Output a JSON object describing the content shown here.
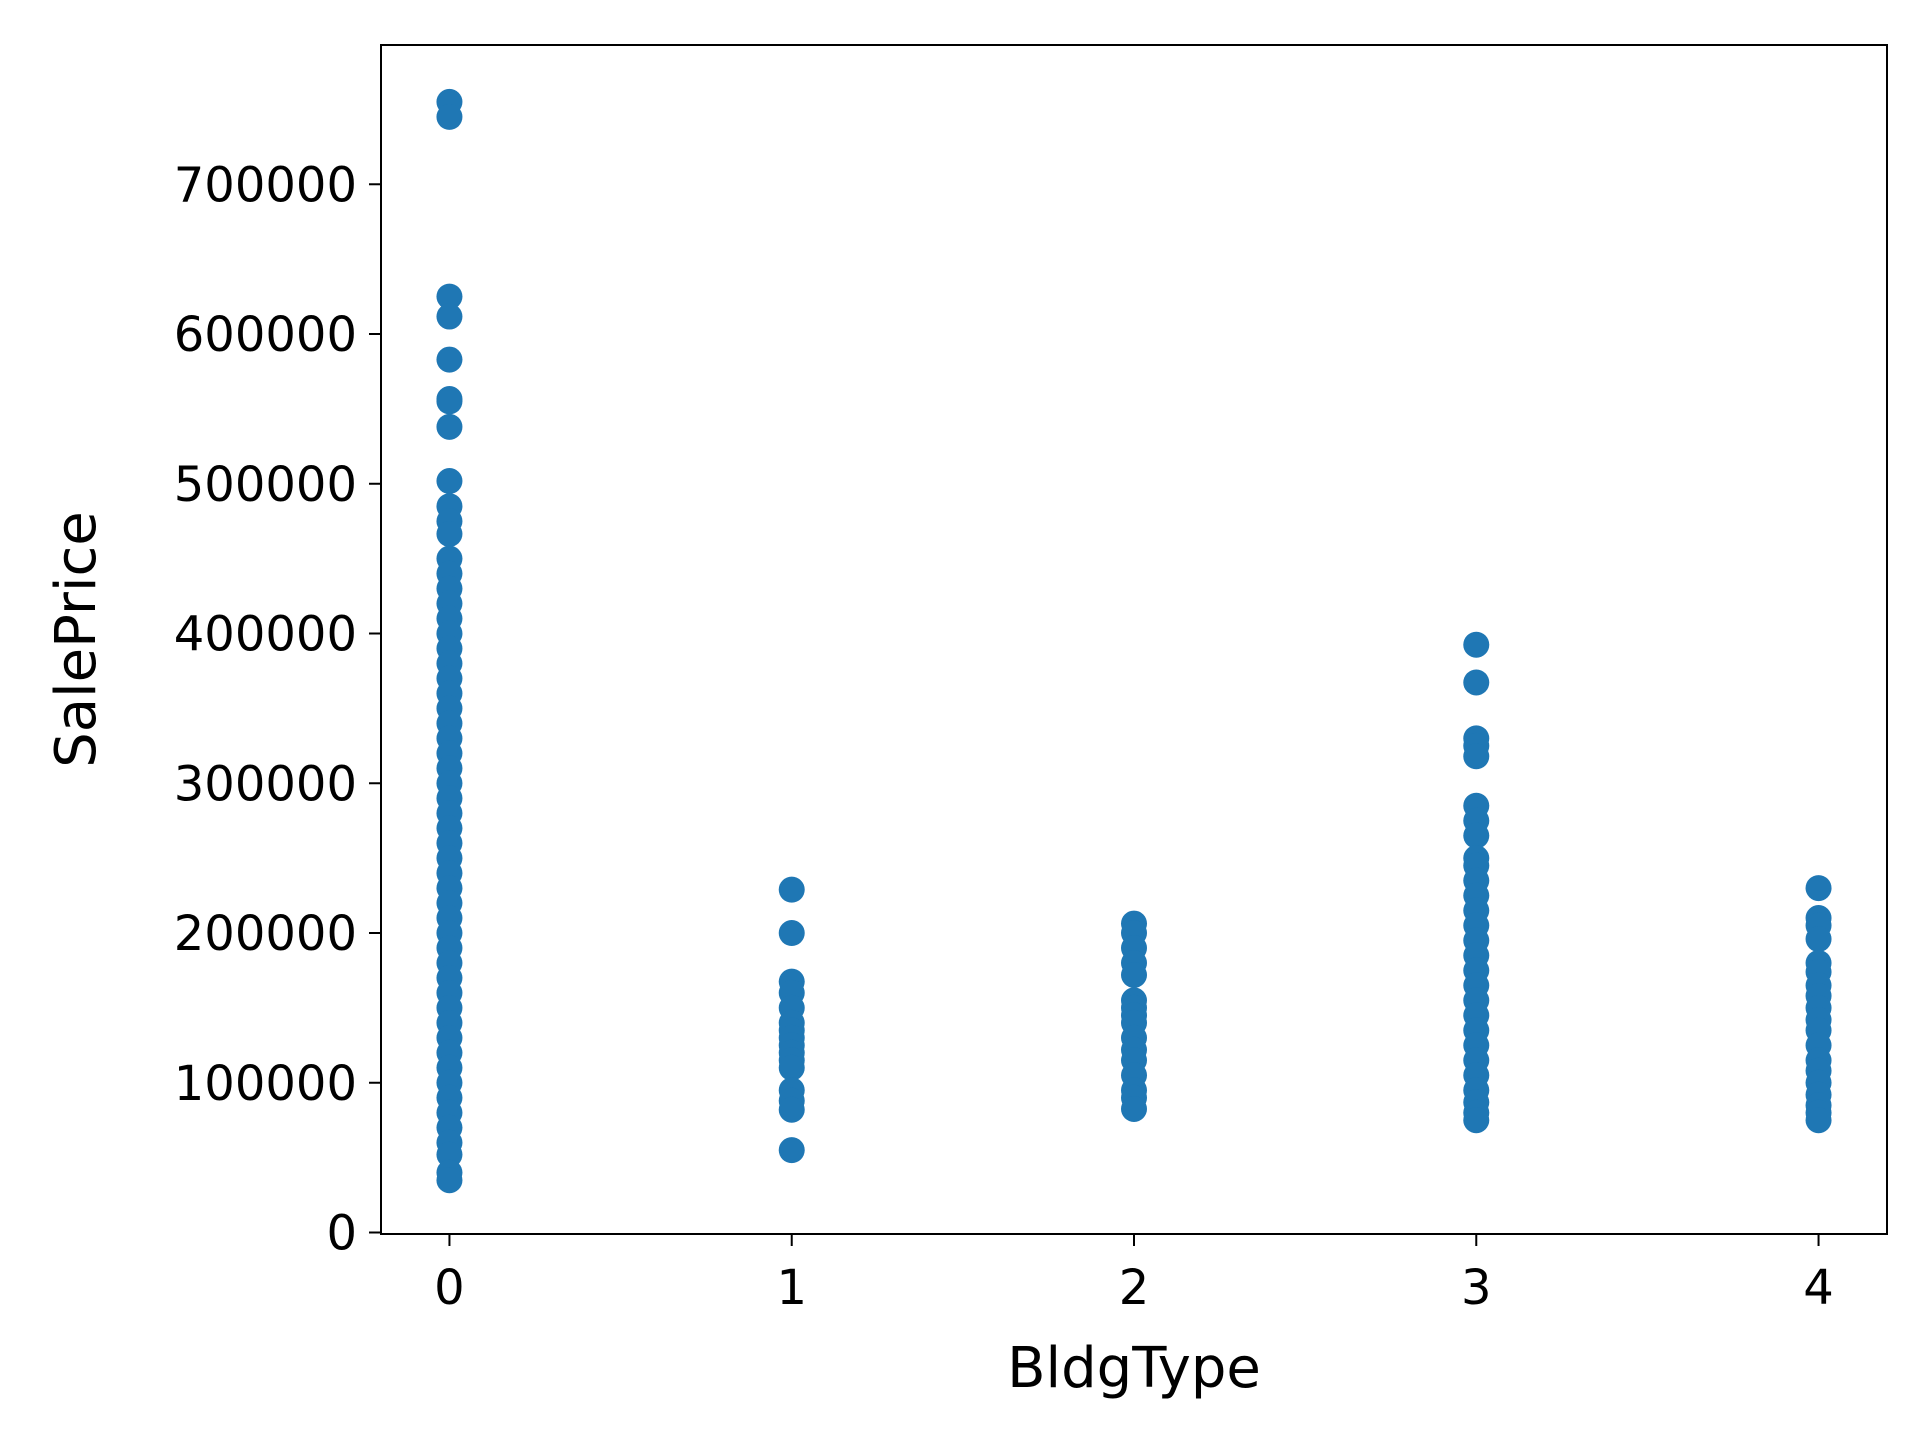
{
  "chart_data": {
    "type": "scatter",
    "title": "",
    "xlabel": "BldgType",
    "ylabel": "SalePrice",
    "xlim": [
      -0.2,
      4.2
    ],
    "ylim": [
      -1000,
      793000
    ],
    "x_ticks": [
      0,
      1,
      2,
      3,
      4
    ],
    "x_tick_labels": [
      "0",
      "1",
      "2",
      "3",
      "4"
    ],
    "y_ticks": [
      0,
      100000,
      200000,
      300000,
      400000,
      500000,
      600000,
      700000
    ],
    "y_tick_labels": [
      "0",
      "100000",
      "200000",
      "300000",
      "400000",
      "500000",
      "600000",
      "700000"
    ],
    "grid": false,
    "legend": false,
    "marker_color": "#1f77b4",
    "series": [
      {
        "points": [
          [
            0,
            755000
          ],
          [
            0,
            745000
          ],
          [
            0,
            625000
          ],
          [
            0,
            611657
          ],
          [
            0,
            582933
          ],
          [
            0,
            556581
          ],
          [
            0,
            555000
          ],
          [
            0,
            538000
          ],
          [
            0,
            501837
          ],
          [
            0,
            485000
          ],
          [
            0,
            475000
          ],
          [
            0,
            466500
          ],
          [
            0,
            450000
          ],
          [
            0,
            440000
          ],
          [
            0,
            430000
          ],
          [
            0,
            420000
          ],
          [
            0,
            410000
          ],
          [
            0,
            400000
          ],
          [
            0,
            390000
          ],
          [
            0,
            380000
          ],
          [
            0,
            370000
          ],
          [
            0,
            360000
          ],
          [
            0,
            350000
          ],
          [
            0,
            340000
          ],
          [
            0,
            330000
          ],
          [
            0,
            320000
          ],
          [
            0,
            310000
          ],
          [
            0,
            300000
          ],
          [
            0,
            290000
          ],
          [
            0,
            280000
          ],
          [
            0,
            270000
          ],
          [
            0,
            260000
          ],
          [
            0,
            250000
          ],
          [
            0,
            240000
          ],
          [
            0,
            230000
          ],
          [
            0,
            220000
          ],
          [
            0,
            210000
          ],
          [
            0,
            200000
          ],
          [
            0,
            190000
          ],
          [
            0,
            180000
          ],
          [
            0,
            170000
          ],
          [
            0,
            160000
          ],
          [
            0,
            150000
          ],
          [
            0,
            140000
          ],
          [
            0,
            130000
          ],
          [
            0,
            120000
          ],
          [
            0,
            110000
          ],
          [
            0,
            100000
          ],
          [
            0,
            90000
          ],
          [
            0,
            80000
          ],
          [
            0,
            70000
          ],
          [
            0,
            60000
          ],
          [
            0,
            52000
          ],
          [
            0,
            40000
          ],
          [
            0,
            34900
          ],
          [
            1,
            228950
          ],
          [
            1,
            200000
          ],
          [
            1,
            167500
          ],
          [
            1,
            160000
          ],
          [
            1,
            150000
          ],
          [
            1,
            140000
          ],
          [
            1,
            135000
          ],
          [
            1,
            130000
          ],
          [
            1,
            125000
          ],
          [
            1,
            120000
          ],
          [
            1,
            115000
          ],
          [
            1,
            110000
          ],
          [
            1,
            95000
          ],
          [
            1,
            88000
          ],
          [
            1,
            82000
          ],
          [
            1,
            55000
          ],
          [
            2,
            206300
          ],
          [
            2,
            200000
          ],
          [
            2,
            190000
          ],
          [
            2,
            180000
          ],
          [
            2,
            172000
          ],
          [
            2,
            155000
          ],
          [
            2,
            150000
          ],
          [
            2,
            145000
          ],
          [
            2,
            140000
          ],
          [
            2,
            130000
          ],
          [
            2,
            122000
          ],
          [
            2,
            115000
          ],
          [
            2,
            105000
          ],
          [
            2,
            95000
          ],
          [
            2,
            90000
          ],
          [
            2,
            82500
          ],
          [
            3,
            392500
          ],
          [
            3,
            367294
          ],
          [
            3,
            330000
          ],
          [
            3,
            325000
          ],
          [
            3,
            318000
          ],
          [
            3,
            285000
          ],
          [
            3,
            275000
          ],
          [
            3,
            265000
          ],
          [
            3,
            250000
          ],
          [
            3,
            245000
          ],
          [
            3,
            235000
          ],
          [
            3,
            225000
          ],
          [
            3,
            215000
          ],
          [
            3,
            205000
          ],
          [
            3,
            195000
          ],
          [
            3,
            185000
          ],
          [
            3,
            175000
          ],
          [
            3,
            165000
          ],
          [
            3,
            155000
          ],
          [
            3,
            145000
          ],
          [
            3,
            135000
          ],
          [
            3,
            125000
          ],
          [
            3,
            115000
          ],
          [
            3,
            105000
          ],
          [
            3,
            95000
          ],
          [
            3,
            87000
          ],
          [
            3,
            80000
          ],
          [
            3,
            75000
          ],
          [
            4,
            230000
          ],
          [
            4,
            210000
          ],
          [
            4,
            205000
          ],
          [
            4,
            196000
          ],
          [
            4,
            180000
          ],
          [
            4,
            174000
          ],
          [
            4,
            165000
          ],
          [
            4,
            158000
          ],
          [
            4,
            150000
          ],
          [
            4,
            142000
          ],
          [
            4,
            135000
          ],
          [
            4,
            125000
          ],
          [
            4,
            115000
          ],
          [
            4,
            108000
          ],
          [
            4,
            100000
          ],
          [
            4,
            92000
          ],
          [
            4,
            85000
          ],
          [
            4,
            80000
          ],
          [
            4,
            75000
          ]
        ]
      }
    ]
  }
}
